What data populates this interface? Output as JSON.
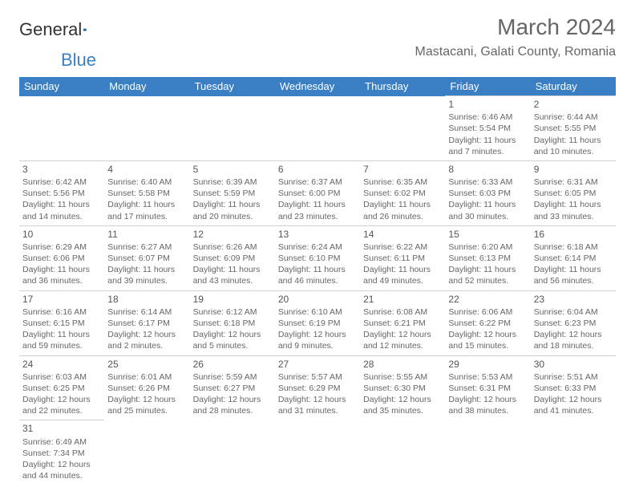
{
  "logo": {
    "text1": "General",
    "text2": "Blue"
  },
  "title": "March 2024",
  "location": "Mastacani, Galati County, Romania",
  "colors": {
    "header_bg": "#3a7fc4",
    "header_text": "#ffffff",
    "text": "#666666",
    "border": "#d0d0d0"
  },
  "dayHeaders": [
    "Sunday",
    "Monday",
    "Tuesday",
    "Wednesday",
    "Thursday",
    "Friday",
    "Saturday"
  ],
  "weeks": [
    [
      null,
      null,
      null,
      null,
      null,
      {
        "n": "1",
        "sr": "Sunrise: 6:46 AM",
        "ss": "Sunset: 5:54 PM",
        "d1": "Daylight: 11 hours",
        "d2": "and 7 minutes."
      },
      {
        "n": "2",
        "sr": "Sunrise: 6:44 AM",
        "ss": "Sunset: 5:55 PM",
        "d1": "Daylight: 11 hours",
        "d2": "and 10 minutes."
      }
    ],
    [
      {
        "n": "3",
        "sr": "Sunrise: 6:42 AM",
        "ss": "Sunset: 5:56 PM",
        "d1": "Daylight: 11 hours",
        "d2": "and 14 minutes."
      },
      {
        "n": "4",
        "sr": "Sunrise: 6:40 AM",
        "ss": "Sunset: 5:58 PM",
        "d1": "Daylight: 11 hours",
        "d2": "and 17 minutes."
      },
      {
        "n": "5",
        "sr": "Sunrise: 6:39 AM",
        "ss": "Sunset: 5:59 PM",
        "d1": "Daylight: 11 hours",
        "d2": "and 20 minutes."
      },
      {
        "n": "6",
        "sr": "Sunrise: 6:37 AM",
        "ss": "Sunset: 6:00 PM",
        "d1": "Daylight: 11 hours",
        "d2": "and 23 minutes."
      },
      {
        "n": "7",
        "sr": "Sunrise: 6:35 AM",
        "ss": "Sunset: 6:02 PM",
        "d1": "Daylight: 11 hours",
        "d2": "and 26 minutes."
      },
      {
        "n": "8",
        "sr": "Sunrise: 6:33 AM",
        "ss": "Sunset: 6:03 PM",
        "d1": "Daylight: 11 hours",
        "d2": "and 30 minutes."
      },
      {
        "n": "9",
        "sr": "Sunrise: 6:31 AM",
        "ss": "Sunset: 6:05 PM",
        "d1": "Daylight: 11 hours",
        "d2": "and 33 minutes."
      }
    ],
    [
      {
        "n": "10",
        "sr": "Sunrise: 6:29 AM",
        "ss": "Sunset: 6:06 PM",
        "d1": "Daylight: 11 hours",
        "d2": "and 36 minutes."
      },
      {
        "n": "11",
        "sr": "Sunrise: 6:27 AM",
        "ss": "Sunset: 6:07 PM",
        "d1": "Daylight: 11 hours",
        "d2": "and 39 minutes."
      },
      {
        "n": "12",
        "sr": "Sunrise: 6:26 AM",
        "ss": "Sunset: 6:09 PM",
        "d1": "Daylight: 11 hours",
        "d2": "and 43 minutes."
      },
      {
        "n": "13",
        "sr": "Sunrise: 6:24 AM",
        "ss": "Sunset: 6:10 PM",
        "d1": "Daylight: 11 hours",
        "d2": "and 46 minutes."
      },
      {
        "n": "14",
        "sr": "Sunrise: 6:22 AM",
        "ss": "Sunset: 6:11 PM",
        "d1": "Daylight: 11 hours",
        "d2": "and 49 minutes."
      },
      {
        "n": "15",
        "sr": "Sunrise: 6:20 AM",
        "ss": "Sunset: 6:13 PM",
        "d1": "Daylight: 11 hours",
        "d2": "and 52 minutes."
      },
      {
        "n": "16",
        "sr": "Sunrise: 6:18 AM",
        "ss": "Sunset: 6:14 PM",
        "d1": "Daylight: 11 hours",
        "d2": "and 56 minutes."
      }
    ],
    [
      {
        "n": "17",
        "sr": "Sunrise: 6:16 AM",
        "ss": "Sunset: 6:15 PM",
        "d1": "Daylight: 11 hours",
        "d2": "and 59 minutes."
      },
      {
        "n": "18",
        "sr": "Sunrise: 6:14 AM",
        "ss": "Sunset: 6:17 PM",
        "d1": "Daylight: 12 hours",
        "d2": "and 2 minutes."
      },
      {
        "n": "19",
        "sr": "Sunrise: 6:12 AM",
        "ss": "Sunset: 6:18 PM",
        "d1": "Daylight: 12 hours",
        "d2": "and 5 minutes."
      },
      {
        "n": "20",
        "sr": "Sunrise: 6:10 AM",
        "ss": "Sunset: 6:19 PM",
        "d1": "Daylight: 12 hours",
        "d2": "and 9 minutes."
      },
      {
        "n": "21",
        "sr": "Sunrise: 6:08 AM",
        "ss": "Sunset: 6:21 PM",
        "d1": "Daylight: 12 hours",
        "d2": "and 12 minutes."
      },
      {
        "n": "22",
        "sr": "Sunrise: 6:06 AM",
        "ss": "Sunset: 6:22 PM",
        "d1": "Daylight: 12 hours",
        "d2": "and 15 minutes."
      },
      {
        "n": "23",
        "sr": "Sunrise: 6:04 AM",
        "ss": "Sunset: 6:23 PM",
        "d1": "Daylight: 12 hours",
        "d2": "and 18 minutes."
      }
    ],
    [
      {
        "n": "24",
        "sr": "Sunrise: 6:03 AM",
        "ss": "Sunset: 6:25 PM",
        "d1": "Daylight: 12 hours",
        "d2": "and 22 minutes."
      },
      {
        "n": "25",
        "sr": "Sunrise: 6:01 AM",
        "ss": "Sunset: 6:26 PM",
        "d1": "Daylight: 12 hours",
        "d2": "and 25 minutes."
      },
      {
        "n": "26",
        "sr": "Sunrise: 5:59 AM",
        "ss": "Sunset: 6:27 PM",
        "d1": "Daylight: 12 hours",
        "d2": "and 28 minutes."
      },
      {
        "n": "27",
        "sr": "Sunrise: 5:57 AM",
        "ss": "Sunset: 6:29 PM",
        "d1": "Daylight: 12 hours",
        "d2": "and 31 minutes."
      },
      {
        "n": "28",
        "sr": "Sunrise: 5:55 AM",
        "ss": "Sunset: 6:30 PM",
        "d1": "Daylight: 12 hours",
        "d2": "and 35 minutes."
      },
      {
        "n": "29",
        "sr": "Sunrise: 5:53 AM",
        "ss": "Sunset: 6:31 PM",
        "d1": "Daylight: 12 hours",
        "d2": "and 38 minutes."
      },
      {
        "n": "30",
        "sr": "Sunrise: 5:51 AM",
        "ss": "Sunset: 6:33 PM",
        "d1": "Daylight: 12 hours",
        "d2": "and 41 minutes."
      }
    ],
    [
      {
        "n": "31",
        "sr": "Sunrise: 6:49 AM",
        "ss": "Sunset: 7:34 PM",
        "d1": "Daylight: 12 hours",
        "d2": "and 44 minutes."
      },
      null,
      null,
      null,
      null,
      null,
      null
    ]
  ]
}
